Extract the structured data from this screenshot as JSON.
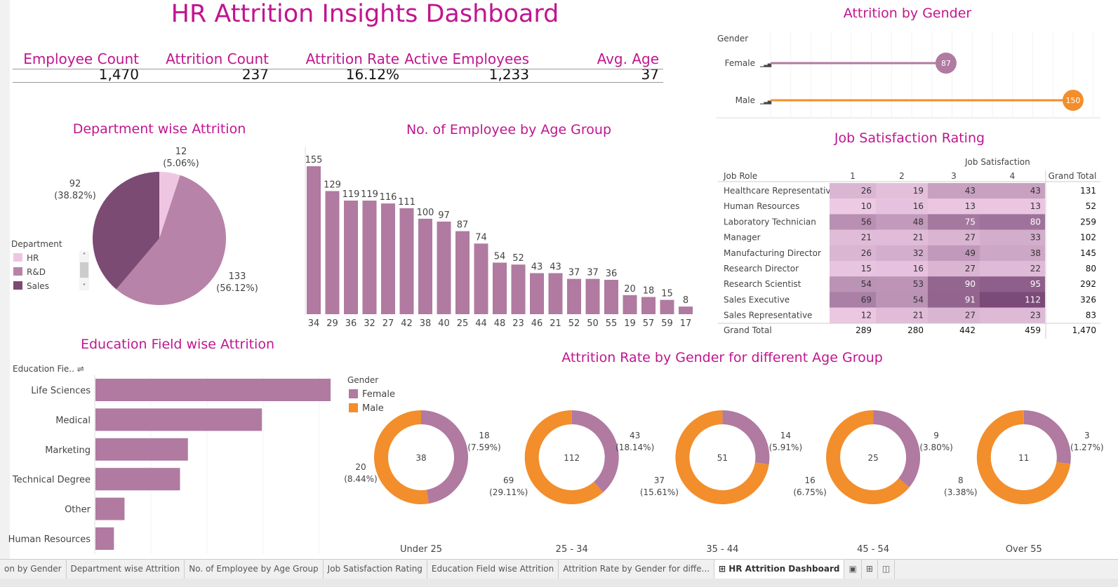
{
  "title": "HR Attrition Insights Dashboard",
  "kpis": [
    {
      "label": "Employee Count",
      "value": "1,470"
    },
    {
      "label": "Attrition Count",
      "value": "237"
    },
    {
      "label": "Attrition Rate",
      "value": "16.12%"
    },
    {
      "label": "Active Employees",
      "value": "1,233"
    },
    {
      "label": "Avg. Age",
      "value": "37"
    }
  ],
  "colors": {
    "accent": "#c0168f",
    "female": "#b07aa1",
    "male": "#f28e2b",
    "hr": "#efc6e2",
    "rd": "#b883a8",
    "sales": "#7b4b74"
  },
  "gender": {
    "title": "Attrition by Gender",
    "header": "Gender",
    "rows": [
      {
        "label": "Female",
        "value": 87
      },
      {
        "label": "Male",
        "value": 150
      }
    ]
  },
  "department": {
    "title": "Department wise Attrition",
    "legend_title": "Department",
    "slices": [
      {
        "label": "HR",
        "value": 12,
        "pct": "(5.06%)"
      },
      {
        "label": "R&D",
        "value": 133,
        "pct": "(56.12%)"
      },
      {
        "label": "Sales",
        "value": 92,
        "pct": "(38.82%)"
      }
    ]
  },
  "age": {
    "title": "No. of Employee by Age Group",
    "chart_data": {
      "type": "bar",
      "categories": [
        "34",
        "29",
        "36",
        "32",
        "27",
        "42",
        "38",
        "40",
        "25",
        "44",
        "48",
        "23",
        "46",
        "21",
        "52",
        "50",
        "55",
        "19",
        "57",
        "59",
        "17"
      ],
      "values": [
        155,
        129,
        119,
        119,
        116,
        111,
        100,
        97,
        87,
        74,
        54,
        52,
        43,
        43,
        37,
        37,
        36,
        20,
        18,
        15,
        8
      ]
    }
  },
  "job": {
    "title": "Job Satisfaction Rating",
    "col_group": "Job Satisfaction",
    "row_header": "Job Role",
    "cols": [
      "1",
      "2",
      "3",
      "4"
    ],
    "total_label": "Grand Total",
    "rows": [
      {
        "role": "Healthcare Representative",
        "v": [
          26,
          19,
          43,
          43
        ],
        "t": "131"
      },
      {
        "role": "Human Resources",
        "v": [
          10,
          16,
          13,
          13
        ],
        "t": "52"
      },
      {
        "role": "Laboratory Technician",
        "v": [
          56,
          48,
          75,
          80
        ],
        "t": "259"
      },
      {
        "role": "Manager",
        "v": [
          21,
          21,
          27,
          33
        ],
        "t": "102"
      },
      {
        "role": "Manufacturing Director",
        "v": [
          26,
          32,
          49,
          38
        ],
        "t": "145"
      },
      {
        "role": "Research Director",
        "v": [
          15,
          16,
          27,
          22
        ],
        "t": "80"
      },
      {
        "role": "Research Scientist",
        "v": [
          54,
          53,
          90,
          95
        ],
        "t": "292"
      },
      {
        "role": "Sales Executive",
        "v": [
          69,
          54,
          91,
          112
        ],
        "t": "326"
      },
      {
        "role": "Sales Representative",
        "v": [
          12,
          21,
          27,
          23
        ],
        "t": "83"
      }
    ],
    "totals": [
      "289",
      "280",
      "442",
      "459",
      "1,470"
    ]
  },
  "education": {
    "title": "Education Field wise Attrition",
    "header": "Education Fie..",
    "chart_data": {
      "type": "bar",
      "categories": [
        "Life Sciences",
        "Medical",
        "Marketing",
        "Technical Degree",
        "Other",
        "Human Resources"
      ],
      "values": [
        89,
        63,
        35,
        32,
        11,
        7
      ]
    }
  },
  "donuts": {
    "title": "Attrition Rate by Gender for different Age Group",
    "legend_title": "Gender",
    "legend": [
      "Female",
      "Male"
    ],
    "groups": [
      {
        "label": "Under 25",
        "total": "38",
        "female": 18,
        "female_pct": "(7.59%)",
        "male": 20,
        "male_pct": "(8.44%)"
      },
      {
        "label": "25 - 34",
        "total": "112",
        "female": 43,
        "female_pct": "(18.14%)",
        "male": 69,
        "male_pct": "(29.11%)"
      },
      {
        "label": "35 - 44",
        "total": "51",
        "female": 14,
        "female_pct": "(5.91%)",
        "male": 37,
        "male_pct": "(15.61%)"
      },
      {
        "label": "45 - 54",
        "total": "25",
        "female": 9,
        "female_pct": "(3.80%)",
        "male": 16,
        "male_pct": "(6.75%)"
      },
      {
        "label": "Over 55",
        "total": "11",
        "female": 3,
        "female_pct": "(1.27%)",
        "male": 8,
        "male_pct": "(3.38%)"
      }
    ]
  },
  "tabs": [
    "on by Gender",
    "Department wise Attrition",
    "No. of Employee by Age Group",
    "Job Satisfaction Rating",
    "Education Field wise Attrition",
    "Attrition Rate by Gender for diffe...",
    "HR Attrition Dashboard"
  ]
}
